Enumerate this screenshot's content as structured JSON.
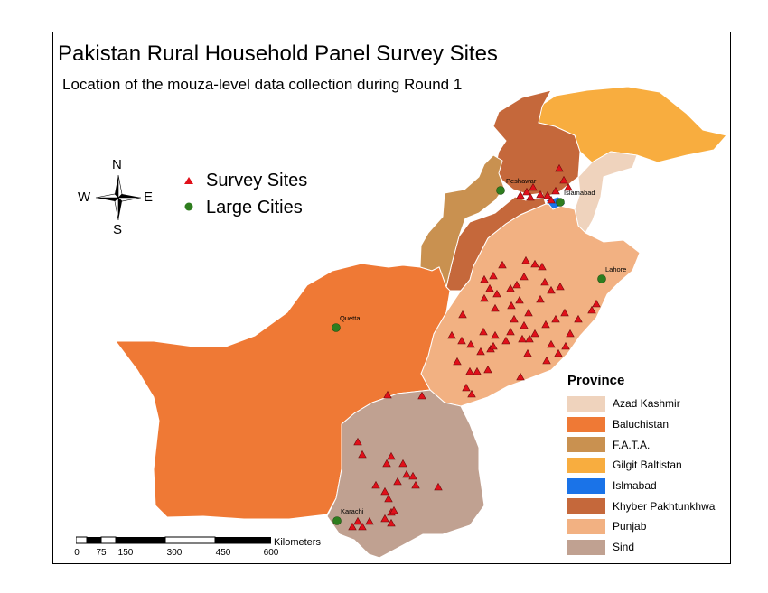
{
  "title": "Pakistan Rural Household Panel Survey Sites",
  "subtitle": "Location of the mouza-level data collection during Round 1",
  "symbols": {
    "survey_sites_label": "Survey Sites",
    "large_cities_label": "Large Cities",
    "survey_color": "#e0101a",
    "city_color": "#2e7d1e"
  },
  "compass": {
    "n": "N",
    "s": "S",
    "e": "E",
    "w": "W"
  },
  "legend": {
    "title": "Province",
    "items": [
      {
        "label": "Azad Kashmir",
        "color": "#efd3bd"
      },
      {
        "label": "Baluchistan",
        "color": "#ef7935"
      },
      {
        "label": "F.A.T.A.",
        "color": "#c99150"
      },
      {
        "label": "Gilgit Baltistan",
        "color": "#f8ad3f"
      },
      {
        "label": "Islmabad",
        "color": "#1a73e8"
      },
      {
        "label": "Khyber Pakhtunkhwa",
        "color": "#c5683b"
      },
      {
        "label": "Punjab",
        "color": "#f2b182"
      },
      {
        "label": "Sind",
        "color": "#c0a191"
      }
    ]
  },
  "cities": [
    {
      "name": "Peshawar"
    },
    {
      "name": "Islamabad"
    },
    {
      "name": "Lahore"
    },
    {
      "name": "Quetta"
    },
    {
      "name": "Karachi"
    }
  ],
  "scalebar": {
    "ticks": [
      "0",
      "75",
      "150",
      "300",
      "450",
      "600"
    ],
    "unit": "Kilometers"
  }
}
